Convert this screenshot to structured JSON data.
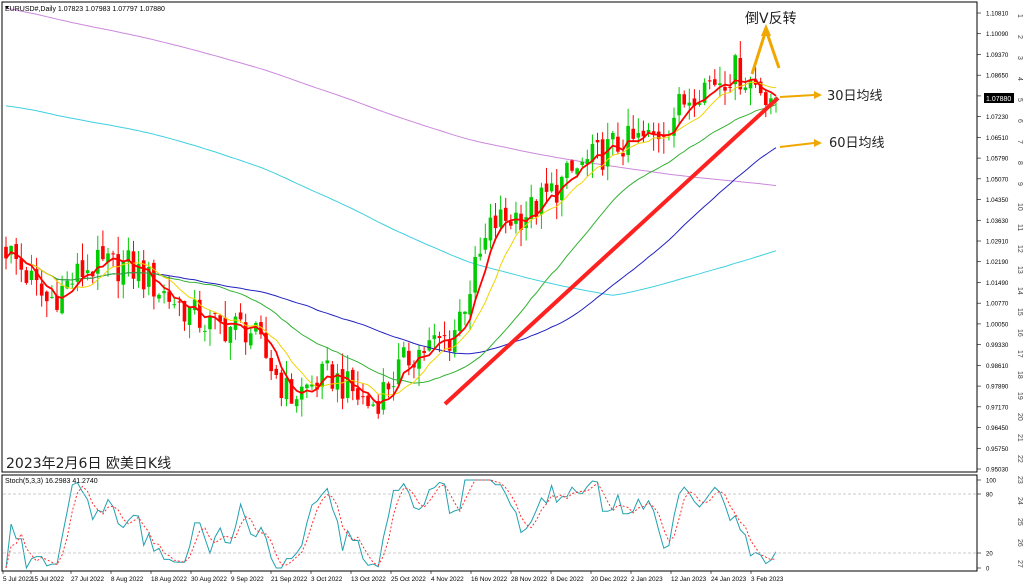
{
  "header": {
    "symbol_line": "EURUSD#,Daily  1.07823 1.07983 1.07797 1.07880"
  },
  "overlay": {
    "caption": "2023年2月6日 欧美日K线",
    "reversal_label": "倒V反转",
    "ma30_label": "30日均线",
    "ma60_label": "60日均线"
  },
  "stoch": {
    "header": "Stoch(5,3,3) 16.2983 41.2740",
    "levels": [
      "100",
      "80",
      "20",
      "0"
    ]
  },
  "price_axis": {
    "ticks": [
      "1.10810",
      "1.10090",
      "1.09370",
      "1.08650",
      "1.07880",
      "1.07230",
      "1.06510",
      "1.05790",
      "1.05070",
      "1.04350",
      "1.03630",
      "1.02910",
      "1.02190",
      "1.01490",
      "1.00770",
      "1.00050",
      "0.99330",
      "0.98610",
      "0.97890",
      "0.97170",
      "0.96450",
      "0.95750",
      "0.95030"
    ],
    "current": "1.07880"
  },
  "side_numbers": [
    "1",
    "2",
    "3",
    "4",
    "5",
    "6",
    "7",
    "8",
    "9",
    "10",
    "11",
    "12",
    "13",
    "14",
    "15",
    "16",
    "17",
    "18",
    "19",
    "20",
    "21",
    "22",
    "23",
    "24",
    "25",
    "26",
    "27"
  ],
  "chart_data": {
    "type": "candlestick",
    "x": [
      "5 Jul 2022",
      "15 Jul 2022",
      "27 Jul 2022",
      "8 Aug 2022",
      "18 Aug 2022",
      "30 Aug 2022",
      "9 Sep 2022",
      "21 Sep 2022",
      "3 Oct 2022",
      "13 Oct 2022",
      "25 Oct 2022",
      "4 Nov 2022",
      "16 Nov 2022",
      "28 Nov 2022",
      "8 Dec 2022",
      "20 Dec 2022",
      "2 Jan 2023",
      "12 Jan 2023",
      "24 Jan 2023",
      "3 Feb 2023"
    ],
    "close_approx": [
      1.027,
      1.008,
      1.02,
      1.021,
      1.01,
      1.0,
      0.999,
      0.975,
      0.983,
      0.972,
      0.99,
      0.996,
      1.035,
      1.04,
      1.053,
      1.062,
      1.065,
      1.082,
      1.088,
      1.0788
    ],
    "ylim": [
      0.9503,
      1.1081
    ],
    "colors": {
      "up": "#00cc00",
      "down": "#ff0000",
      "ma_fast": "#ff0000",
      "ma_mid": "#f0d400",
      "ma30": "#33b233",
      "ma60": "#2020c0",
      "ma_long1": "#40d0e0",
      "ma_long2": "#cc88dd",
      "trendline": "#ff2020",
      "annotation": "#f0a800"
    }
  }
}
